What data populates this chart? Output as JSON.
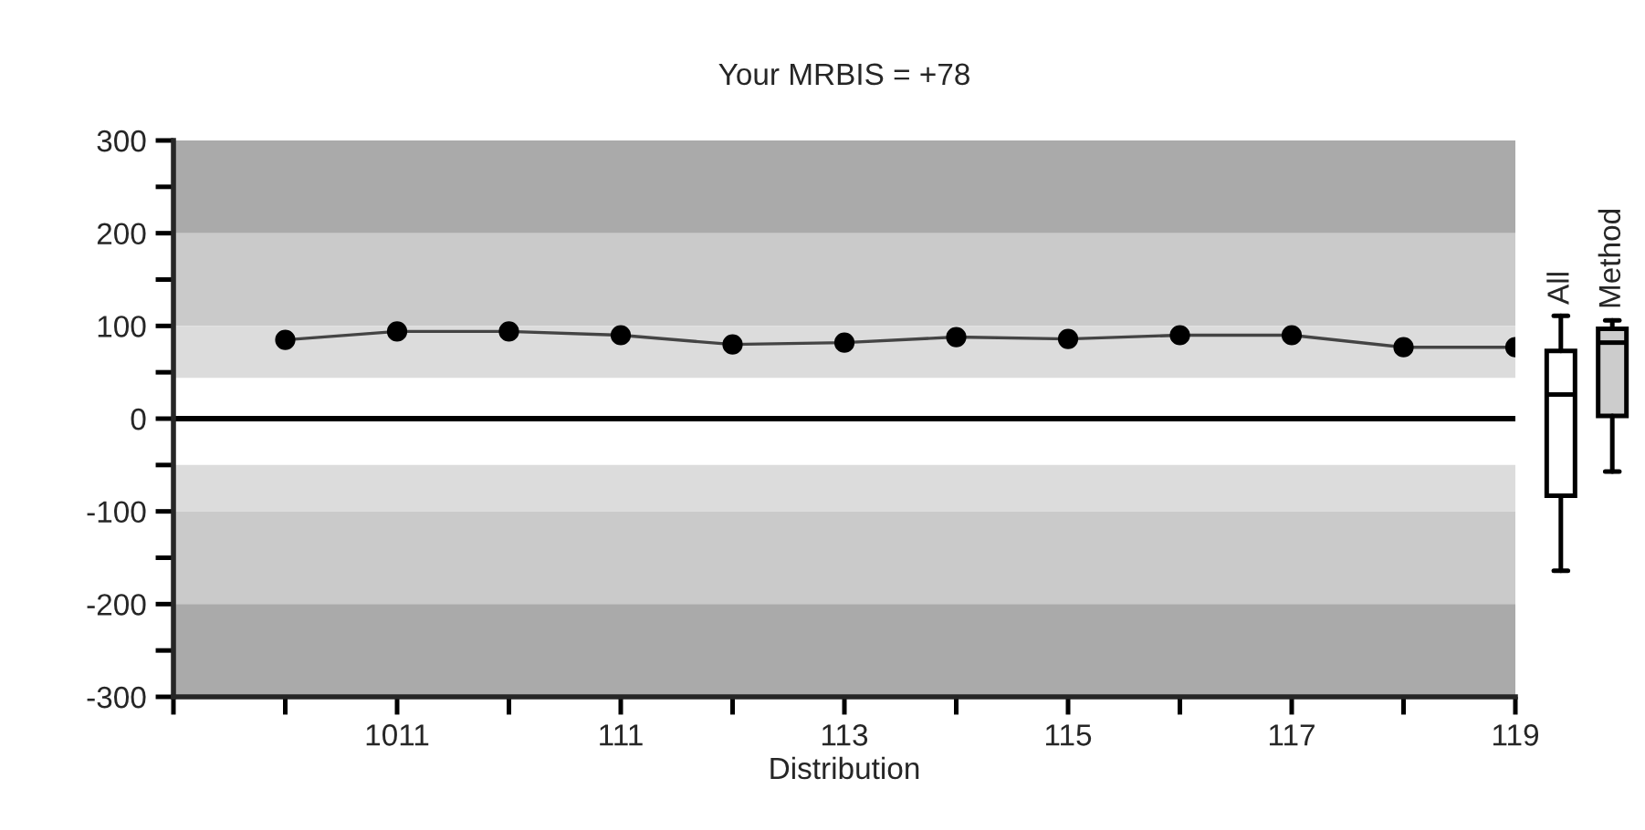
{
  "chart_data": [
    {
      "type": "line",
      "title": "Your MRBIS = +78",
      "xlabel": "Distribution",
      "categories": [
        null,
        "1011",
        null,
        "111",
        null,
        "113",
        null,
        "115",
        null,
        "117",
        null,
        "119"
      ],
      "series": [
        {
          "color": "#000000",
          "values": [
            85,
            94,
            94,
            90,
            80,
            82,
            88,
            86,
            90,
            90,
            77,
            77
          ]
        }
      ],
      "marker": "circle",
      "line_style": "solid",
      "ylim": [
        -300,
        300
      ],
      "yticks": [
        -300,
        {
          "value": -250,
          "label": null
        },
        -200,
        {
          "value": -150,
          "label": null
        },
        -100,
        {
          "value": -50,
          "label": null
        },
        0,
        {
          "value": 50,
          "label": null
        },
        100,
        {
          "value": 150,
          "label": null
        },
        200,
        {
          "value": 250,
          "label": null
        },
        300
      ],
      "bands": [
        {
          "axis": "y",
          "from": 200,
          "to": 300,
          "color": "#aaaaaa"
        },
        {
          "axis": "y",
          "from": 100,
          "to": 200,
          "color": "#cacaca"
        },
        {
          "axis": "y",
          "from": 44,
          "to": 100,
          "color": "#dcdcdc"
        },
        {
          "axis": "y",
          "from": -100,
          "to": -50,
          "color": "#dcdcdc"
        },
        {
          "axis": "y",
          "from": -200,
          "to": -100,
          "color": "#cacaca"
        },
        {
          "axis": "y",
          "from": -300,
          "to": -200,
          "color": "#aaaaaa"
        }
      ],
      "ref_lines": [
        {
          "axis": "y",
          "value": 0,
          "color": "#000000"
        }
      ],
      "grid": false,
      "legend": false
    },
    {
      "type": "box",
      "categories": [
        "All",
        "Method"
      ],
      "colors": [
        "#ffffff",
        "#cccccc"
      ],
      "boxes": [
        {
          "low": -164,
          "q1": -83,
          "median": 26,
          "q3": 73,
          "high": 111
        },
        {
          "low": -57,
          "q1": 3,
          "median": 82,
          "q3": 97,
          "high": 106
        }
      ],
      "ylim": [
        -300,
        300
      ],
      "tick_labels": false
    }
  ]
}
